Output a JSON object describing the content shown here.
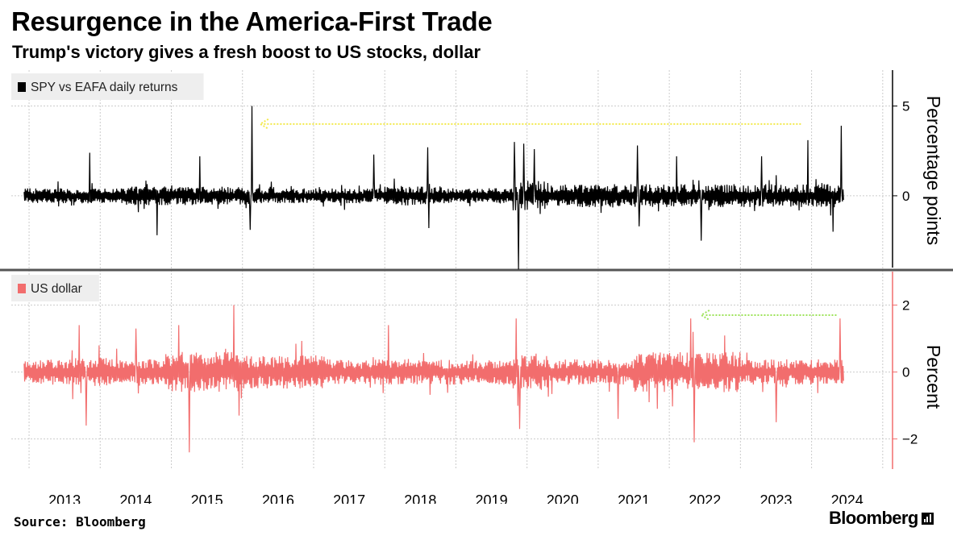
{
  "title": "Resurgence in the America-First Trade",
  "subtitle": "Trump's victory gives a fresh boost to US stocks, dollar",
  "source": "Source: Bloomberg",
  "brand": "Bloomberg",
  "colors": {
    "top_series": "#000000",
    "bottom_series": "#f26d6d",
    "yellow_arrow": "#f3e94a",
    "green_arrow": "#9ee35a",
    "grid": "#cccccc",
    "legend_bg": "#eeeeee"
  },
  "chart_data": [
    {
      "type": "line",
      "legend_label": "SPY vs EAFA daily returns",
      "legend_placement": "top-left",
      "ylabel": "Percentage points",
      "ylim": [
        -4.0,
        7.0
      ],
      "yticks": [
        5,
        0
      ],
      "yticks_labeled": [
        "5",
        "0"
      ],
      "x_ticks": [
        "2013",
        "2014",
        "2015",
        "2016",
        "2017",
        "2018",
        "2019",
        "2020",
        "2021",
        "2022",
        "2023",
        "2024"
      ],
      "x_range": [
        2012.75,
        2024.9
      ],
      "grid": true,
      "series": [
        {
          "values_summary": "daily returns, mostly between -1 and +1",
          "spikes": [
            {
              "x": 2013.85,
              "y": 2.4
            },
            {
              "x": 2014.8,
              "y": -2.2
            },
            {
              "x": 2015.4,
              "y": 2.2
            },
            {
              "x": 2016.13,
              "y": 5.0
            },
            {
              "x": 2016.11,
              "y": -1.9
            },
            {
              "x": 2017.85,
              "y": 2.3
            },
            {
              "x": 2018.6,
              "y": 2.7
            },
            {
              "x": 2018.62,
              "y": -1.8
            },
            {
              "x": 2019.82,
              "y": 3.0
            },
            {
              "x": 2019.88,
              "y": -4.1
            },
            {
              "x": 2019.95,
              "y": 2.9
            },
            {
              "x": 2020.1,
              "y": 2.6
            },
            {
              "x": 2021.55,
              "y": 2.8
            },
            {
              "x": 2021.58,
              "y": -1.7
            },
            {
              "x": 2022.1,
              "y": 2.2
            },
            {
              "x": 2022.45,
              "y": -2.5
            },
            {
              "x": 2023.3,
              "y": 2.2
            },
            {
              "x": 2023.95,
              "y": 3.1
            },
            {
              "x": 2024.3,
              "y": -2.0
            },
            {
              "x": 2024.42,
              "y": 3.9
            }
          ]
        }
      ],
      "annotation": {
        "type": "arrow",
        "color": "yellow",
        "from_x": 2023.85,
        "to_x": 2016.25,
        "y": 4.0
      }
    },
    {
      "type": "line",
      "legend_label": "US dollar",
      "legend_placement": "top-left",
      "ylabel": "Percent",
      "ylim": [
        -2.9,
        3.0
      ],
      "yticks": [
        2,
        0,
        -2
      ],
      "yticks_labeled": [
        "2",
        "0",
        "−2"
      ],
      "x_ticks": [
        "2013",
        "2014",
        "2015",
        "2016",
        "2017",
        "2018",
        "2019",
        "2020",
        "2021",
        "2022",
        "2023",
        "2024"
      ],
      "x_range": [
        2012.75,
        2024.9
      ],
      "grid": true,
      "series": [
        {
          "values_summary": "daily changes, mostly between -0.8 and +0.8",
          "spikes": [
            {
              "x": 2013.7,
              "y": 1.4
            },
            {
              "x": 2013.8,
              "y": -1.6
            },
            {
              "x": 2014.5,
              "y": 1.3
            },
            {
              "x": 2015.25,
              "y": -2.4
            },
            {
              "x": 2015.1,
              "y": 1.4
            },
            {
              "x": 2015.88,
              "y": 2.0
            },
            {
              "x": 2015.95,
              "y": -1.3
            },
            {
              "x": 2018.05,
              "y": 1.4
            },
            {
              "x": 2019.85,
              "y": 1.6
            },
            {
              "x": 2019.9,
              "y": -1.7
            },
            {
              "x": 2021.28,
              "y": -1.4
            },
            {
              "x": 2022.3,
              "y": 1.6
            },
            {
              "x": 2022.35,
              "y": -2.1
            },
            {
              "x": 2022.33,
              "y": 1.2
            },
            {
              "x": 2023.5,
              "y": -1.5
            },
            {
              "x": 2024.4,
              "y": 1.6
            }
          ]
        }
      ],
      "annotation": {
        "type": "arrow",
        "color": "green",
        "from_x": 2024.35,
        "to_x": 2022.45,
        "y": 1.7
      }
    }
  ]
}
